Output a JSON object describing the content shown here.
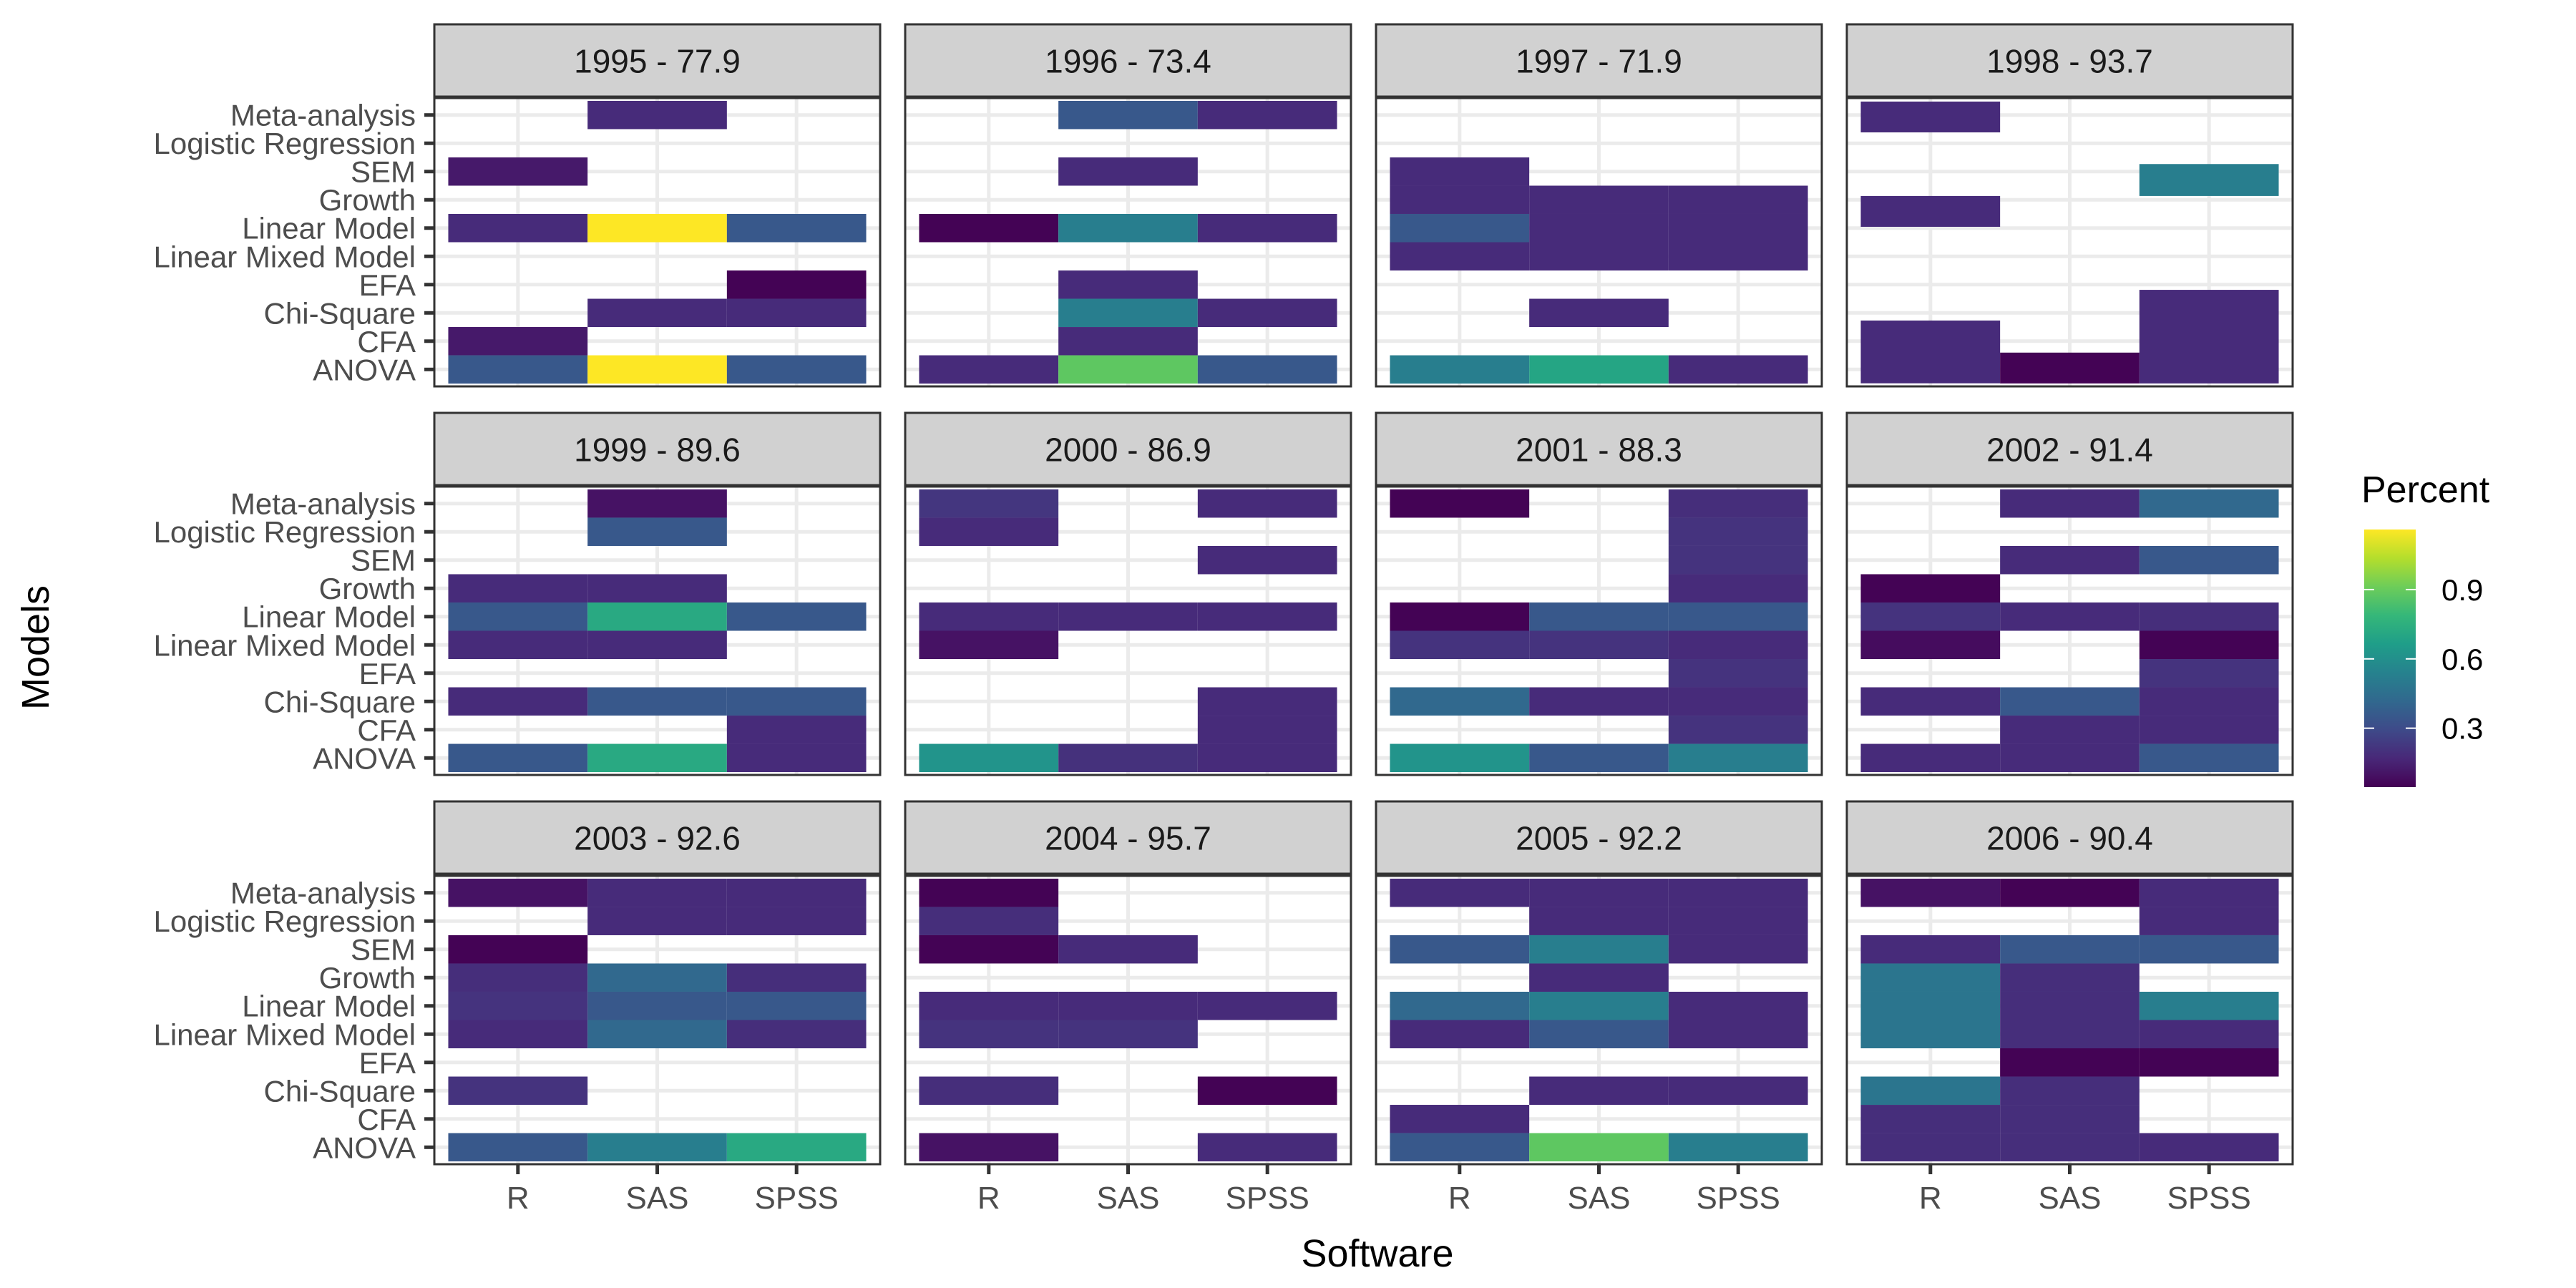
{
  "chart_data": {
    "type": "heatmap",
    "title": "",
    "xlabel": "Software",
    "ylabel": "Models",
    "x_categories": [
      "R",
      "SAS",
      "SPSS"
    ],
    "y_categories": [
      "ANOVA",
      "CFA",
      "Chi-Square",
      "EFA",
      "Linear Mixed Model",
      "Linear Model",
      "Growth",
      "SEM",
      "Logistic Regression",
      "Meta-analysis"
    ],
    "legend": {
      "title": "Percent",
      "position": "right",
      "ticks": [
        0.3,
        0.6,
        0.9
      ],
      "range": [
        0.045,
        1.16
      ],
      "colormap": "viridis",
      "colors": [
        "#440154",
        "#482878",
        "#3E4A89",
        "#31688E",
        "#26828E",
        "#1F9E89",
        "#35B779",
        "#6DCD59",
        "#B4DE2C",
        "#FDE725"
      ]
    },
    "grid": true,
    "panels": [
      {
        "label": "1995 - 77.9",
        "tiles": [
          [
            "Meta-analysis",
            "SAS",
            0.18
          ],
          [
            "SEM",
            "R",
            0.12
          ],
          [
            "Linear Model",
            "R",
            0.18
          ],
          [
            "Linear Model",
            "SAS",
            1.16
          ],
          [
            "Linear Model",
            "SPSS",
            0.35
          ],
          [
            "EFA",
            "SPSS",
            0.05
          ],
          [
            "Chi-Square",
            "SAS",
            0.18
          ],
          [
            "Chi-Square",
            "SPSS",
            0.18
          ],
          [
            "CFA",
            "R",
            0.12
          ],
          [
            "ANOVA",
            "R",
            0.35
          ],
          [
            "ANOVA",
            "SAS",
            1.16
          ],
          [
            "ANOVA",
            "SPSS",
            0.35
          ]
        ]
      },
      {
        "label": "1996 - 73.4",
        "tiles": [
          [
            "Meta-analysis",
            "SAS",
            0.35
          ],
          [
            "Meta-analysis",
            "SPSS",
            0.18
          ],
          [
            "SEM",
            "SAS",
            0.18
          ],
          [
            "Linear Model",
            "R",
            0.05
          ],
          [
            "Linear Model",
            "SAS",
            0.52
          ],
          [
            "Linear Model",
            "SPSS",
            0.18
          ],
          [
            "EFA",
            "SAS",
            0.18
          ],
          [
            "Chi-Square",
            "SAS",
            0.52
          ],
          [
            "Chi-Square",
            "SPSS",
            0.18
          ],
          [
            "CFA",
            "SAS",
            0.18
          ],
          [
            "ANOVA",
            "R",
            0.18
          ],
          [
            "ANOVA",
            "SAS",
            0.88
          ],
          [
            "ANOVA",
            "SPSS",
            0.35
          ]
        ]
      },
      {
        "label": "1997 - 71.9",
        "tiles": [
          [
            "SEM",
            "R",
            0.18
          ],
          [
            "Growth",
            "R",
            0.18
          ],
          [
            "Growth",
            "SAS",
            0.18
          ],
          [
            "Growth",
            "SPSS",
            0.18
          ],
          [
            "Linear Model",
            "R",
            0.35
          ],
          [
            "Linear Model",
            "SAS",
            0.18
          ],
          [
            "Linear Model",
            "SPSS",
            0.18
          ],
          [
            "Linear Mixed Model",
            "R",
            0.18
          ],
          [
            "Linear Mixed Model",
            "SAS",
            0.18
          ],
          [
            "Linear Mixed Model",
            "SPSS",
            0.18
          ],
          [
            "Chi-Square",
            "SAS",
            0.18
          ],
          [
            "ANOVA",
            "R",
            0.52
          ],
          [
            "ANOVA",
            "SAS",
            0.7
          ],
          [
            "ANOVA",
            "SPSS",
            0.18
          ]
        ]
      },
      {
        "label": "1998 - 93.7",
        "tiles": [
          [
            "Meta-analysis",
            "R",
            0.18,
            9.93,
            1.09
          ],
          [
            "SEM",
            "SPSS",
            0.52,
            7.7,
            1.13
          ],
          [
            "Growth",
            "R",
            0.18,
            6.59,
            1.09
          ],
          [
            "CFA",
            "R",
            0.18,
            1.62,
            2.22
          ],
          [
            "ANOVA",
            "SAS",
            0.05,
            1.05,
            1.09
          ],
          [
            "Chi-Square",
            "SPSS",
            0.18,
            2.16,
            3.31
          ]
        ]
      },
      {
        "label": "1999 - 89.6",
        "tiles": [
          [
            "Meta-analysis",
            "SAS",
            0.1
          ],
          [
            "Logistic Regression",
            "SAS",
            0.35
          ],
          [
            "Growth",
            "R",
            0.18
          ],
          [
            "Growth",
            "SAS",
            0.18
          ],
          [
            "Linear Model",
            "R",
            0.35
          ],
          [
            "Linear Model",
            "SAS",
            0.72
          ],
          [
            "Linear Model",
            "SPSS",
            0.35
          ],
          [
            "Linear Mixed Model",
            "R",
            0.18
          ],
          [
            "Linear Mixed Model",
            "SAS",
            0.18
          ],
          [
            "Chi-Square",
            "R",
            0.18
          ],
          [
            "Chi-Square",
            "SAS",
            0.35
          ],
          [
            "Chi-Square",
            "SPSS",
            0.35
          ],
          [
            "CFA",
            "SPSS",
            0.18
          ],
          [
            "ANOVA",
            "R",
            0.35
          ],
          [
            "ANOVA",
            "SAS",
            0.72
          ],
          [
            "ANOVA",
            "SPSS",
            0.18
          ]
        ]
      },
      {
        "label": "2000 - 86.9",
        "tiles": [
          [
            "Meta-analysis",
            "R",
            0.22
          ],
          [
            "Meta-analysis",
            "SPSS",
            0.18
          ],
          [
            "Logistic Regression",
            "R",
            0.18
          ],
          [
            "SEM",
            "SPSS",
            0.18
          ],
          [
            "Linear Model",
            "R",
            0.18
          ],
          [
            "Linear Model",
            "SAS",
            0.18
          ],
          [
            "Linear Model",
            "SPSS",
            0.18
          ],
          [
            "Linear Mixed Model",
            "R",
            0.1
          ],
          [
            "Chi-Square",
            "SPSS",
            0.18
          ],
          [
            "CFA",
            "SPSS",
            0.18
          ],
          [
            "ANOVA",
            "R",
            0.62
          ],
          [
            "ANOVA",
            "SAS",
            0.2
          ],
          [
            "ANOVA",
            "SPSS",
            0.18
          ]
        ]
      },
      {
        "label": "2001 - 88.3",
        "tiles": [
          [
            "Meta-analysis",
            "R",
            0.05
          ],
          [
            "Meta-analysis",
            "SPSS",
            0.19
          ],
          [
            "Logistic Regression",
            "SPSS",
            0.21
          ],
          [
            "SEM",
            "SPSS",
            0.21
          ],
          [
            "Growth",
            "SPSS",
            0.18
          ],
          [
            "Linear Model",
            "R",
            0.05
          ],
          [
            "Linear Model",
            "SAS",
            0.35
          ],
          [
            "Linear Model",
            "SPSS",
            0.35
          ],
          [
            "Linear Mixed Model",
            "R",
            0.21
          ],
          [
            "Linear Mixed Model",
            "SAS",
            0.21
          ],
          [
            "Linear Mixed Model",
            "SPSS",
            0.18
          ],
          [
            "EFA",
            "SPSS",
            0.21
          ],
          [
            "Chi-Square",
            "R",
            0.42
          ],
          [
            "Chi-Square",
            "SAS",
            0.18
          ],
          [
            "Chi-Square",
            "SPSS",
            0.18
          ],
          [
            "CFA",
            "SPSS",
            0.21
          ],
          [
            "ANOVA",
            "R",
            0.62
          ],
          [
            "ANOVA",
            "SAS",
            0.35
          ],
          [
            "ANOVA",
            "SPSS",
            0.52
          ]
        ]
      },
      {
        "label": "2002 - 91.4",
        "tiles": [
          [
            "Meta-analysis",
            "SAS",
            0.18
          ],
          [
            "Meta-analysis",
            "SPSS",
            0.42
          ],
          [
            "SEM",
            "SAS",
            0.18
          ],
          [
            "SEM",
            "SPSS",
            0.35
          ],
          [
            "Growth",
            "R",
            0.05
          ],
          [
            "Linear Model",
            "R",
            0.21
          ],
          [
            "Linear Model",
            "SAS",
            0.18
          ],
          [
            "Linear Model",
            "SPSS",
            0.19
          ],
          [
            "Linear Mixed Model",
            "R",
            0.08
          ],
          [
            "Linear Mixed Model",
            "SPSS",
            0.05
          ],
          [
            "EFA",
            "SPSS",
            0.21
          ],
          [
            "Chi-Square",
            "R",
            0.18
          ],
          [
            "Chi-Square",
            "SAS",
            0.35
          ],
          [
            "Chi-Square",
            "SPSS",
            0.18
          ],
          [
            "CFA",
            "SAS",
            0.18
          ],
          [
            "CFA",
            "SPSS",
            0.18
          ],
          [
            "ANOVA",
            "R",
            0.18
          ],
          [
            "ANOVA",
            "SAS",
            0.18
          ],
          [
            "ANOVA",
            "SPSS",
            0.35
          ]
        ]
      },
      {
        "label": "2003 - 92.6",
        "tiles": [
          [
            "Meta-analysis",
            "R",
            0.1
          ],
          [
            "Meta-analysis",
            "SAS",
            0.18
          ],
          [
            "Meta-analysis",
            "SPSS",
            0.18
          ],
          [
            "Logistic Regression",
            "SAS",
            0.18
          ],
          [
            "Logistic Regression",
            "SPSS",
            0.18
          ],
          [
            "SEM",
            "R",
            0.05
          ],
          [
            "Growth",
            "R",
            0.19
          ],
          [
            "Growth",
            "SAS",
            0.42
          ],
          [
            "Growth",
            "SPSS",
            0.19
          ],
          [
            "Linear Model",
            "R",
            0.21
          ],
          [
            "Linear Model",
            "SAS",
            0.35
          ],
          [
            "Linear Model",
            "SPSS",
            0.35
          ],
          [
            "Linear Mixed Model",
            "R",
            0.18
          ],
          [
            "Linear Mixed Model",
            "SAS",
            0.42
          ],
          [
            "Linear Mixed Model",
            "SPSS",
            0.19
          ],
          [
            "Chi-Square",
            "R",
            0.21
          ],
          [
            "ANOVA",
            "R",
            0.35
          ],
          [
            "ANOVA",
            "SAS",
            0.52
          ],
          [
            "ANOVA",
            "SPSS",
            0.72
          ]
        ]
      },
      {
        "label": "2004 - 95.7",
        "tiles": [
          [
            "Meta-analysis",
            "R",
            0.05
          ],
          [
            "Logistic Regression",
            "R",
            0.19
          ],
          [
            "SEM",
            "R",
            0.05
          ],
          [
            "SEM",
            "SAS",
            0.18
          ],
          [
            "Linear Model",
            "R",
            0.18
          ],
          [
            "Linear Model",
            "SAS",
            0.18
          ],
          [
            "Linear Model",
            "SPSS",
            0.18
          ],
          [
            "Linear Mixed Model",
            "R",
            0.21
          ],
          [
            "Linear Mixed Model",
            "SAS",
            0.21
          ],
          [
            "Chi-Square",
            "R",
            0.19
          ],
          [
            "Chi-Square",
            "SPSS",
            0.05
          ],
          [
            "ANOVA",
            "R",
            0.1
          ],
          [
            "ANOVA",
            "SPSS",
            0.18
          ]
        ]
      },
      {
        "label": "2005 - 92.2",
        "tiles": [
          [
            "Meta-analysis",
            "R",
            0.18
          ],
          [
            "Meta-analysis",
            "SAS",
            0.18
          ],
          [
            "Meta-analysis",
            "SPSS",
            0.18
          ],
          [
            "Logistic Regression",
            "SAS",
            0.18
          ],
          [
            "Logistic Regression",
            "SPSS",
            0.18
          ],
          [
            "SEM",
            "R",
            0.35
          ],
          [
            "SEM",
            "SAS",
            0.52
          ],
          [
            "SEM",
            "SPSS",
            0.18
          ],
          [
            "Growth",
            "SAS",
            0.18
          ],
          [
            "Linear Model",
            "R",
            0.42
          ],
          [
            "Linear Model",
            "SAS",
            0.52
          ],
          [
            "Linear Model",
            "SPSS",
            0.18
          ],
          [
            "Linear Mixed Model",
            "R",
            0.18
          ],
          [
            "Linear Mixed Model",
            "SAS",
            0.35
          ],
          [
            "Linear Mixed Model",
            "SPSS",
            0.18
          ],
          [
            "Chi-Square",
            "SAS",
            0.18
          ],
          [
            "Chi-Square",
            "SPSS",
            0.18
          ],
          [
            "CFA",
            "R",
            0.18
          ],
          [
            "ANOVA",
            "R",
            0.35
          ],
          [
            "ANOVA",
            "SAS",
            0.88
          ],
          [
            "ANOVA",
            "SPSS",
            0.52
          ]
        ]
      },
      {
        "label": "2006 - 90.4",
        "tiles": [
          [
            "Meta-analysis",
            "R",
            0.1
          ],
          [
            "Meta-analysis",
            "SAS",
            0.05
          ],
          [
            "Meta-analysis",
            "SPSS",
            0.18
          ],
          [
            "Logistic Regression",
            "SPSS",
            0.18
          ],
          [
            "SEM",
            "R",
            0.18
          ],
          [
            "SEM",
            "SAS",
            0.35
          ],
          [
            "SEM",
            "SPSS",
            0.35
          ],
          [
            "Growth",
            "R",
            0.48
          ],
          [
            "Growth",
            "SAS",
            0.19
          ],
          [
            "Linear Model",
            "R",
            0.48
          ],
          [
            "Linear Model",
            "SAS",
            0.19
          ],
          [
            "Linear Model",
            "SPSS",
            0.52
          ],
          [
            "Linear Mixed Model",
            "R",
            0.48
          ],
          [
            "Linear Mixed Model",
            "SAS",
            0.19
          ],
          [
            "Linear Mixed Model",
            "SPSS",
            0.18
          ],
          [
            "EFA",
            "SAS",
            0.05
          ],
          [
            "EFA",
            "SPSS",
            0.05
          ],
          [
            "Chi-Square",
            "R",
            0.48
          ],
          [
            "Chi-Square",
            "SAS",
            0.19
          ],
          [
            "CFA",
            "R",
            0.19
          ],
          [
            "CFA",
            "SAS",
            0.19
          ],
          [
            "ANOVA",
            "R",
            0.19
          ],
          [
            "ANOVA",
            "SAS",
            0.19
          ],
          [
            "ANOVA",
            "SPSS",
            0.18
          ]
        ]
      }
    ]
  }
}
